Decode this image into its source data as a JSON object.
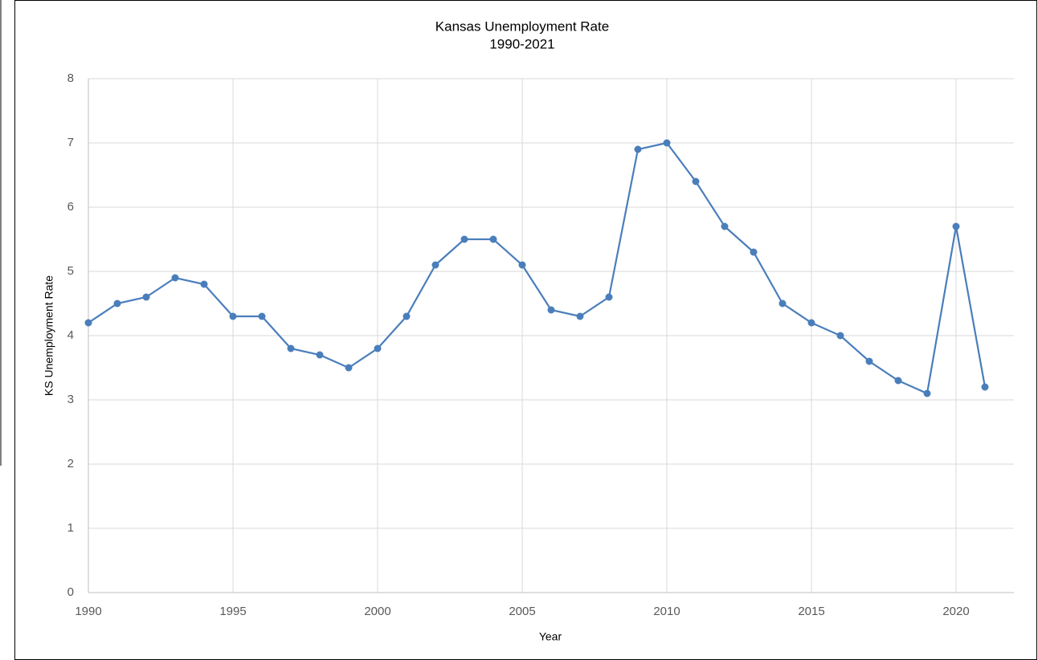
{
  "chart_data": {
    "type": "line",
    "title": "Kansas Unemployment Rate",
    "subtitle": "1990-2021",
    "x_label": "Year",
    "y_label": "KS Unemployment Rate",
    "x": [
      1990,
      1991,
      1992,
      1993,
      1994,
      1995,
      1996,
      1997,
      1998,
      1999,
      2000,
      2001,
      2002,
      2003,
      2004,
      2005,
      2006,
      2007,
      2008,
      2009,
      2010,
      2011,
      2012,
      2013,
      2014,
      2015,
      2016,
      2017,
      2018,
      2019,
      2020,
      2021
    ],
    "series": [
      {
        "name": "KS Unemployment Rate",
        "color": "#4a7ebb",
        "values": [
          4.2,
          4.5,
          4.6,
          4.9,
          4.8,
          4.3,
          4.3,
          3.8,
          3.7,
          3.5,
          3.8,
          4.3,
          5.1,
          5.5,
          5.5,
          5.1,
          4.4,
          4.3,
          4.6,
          6.9,
          7.0,
          6.4,
          5.7,
          5.3,
          4.5,
          4.2,
          4.0,
          3.6,
          3.3,
          3.1,
          5.7,
          3.2
        ]
      }
    ],
    "xlim": [
      1990,
      2022
    ],
    "xticks": [
      1990,
      1995,
      2000,
      2005,
      2010,
      2015,
      2020
    ],
    "ylim": [
      0,
      8
    ],
    "yticks": [
      0,
      1,
      2,
      3,
      4,
      5,
      6,
      7,
      8
    ],
    "grid": true
  }
}
